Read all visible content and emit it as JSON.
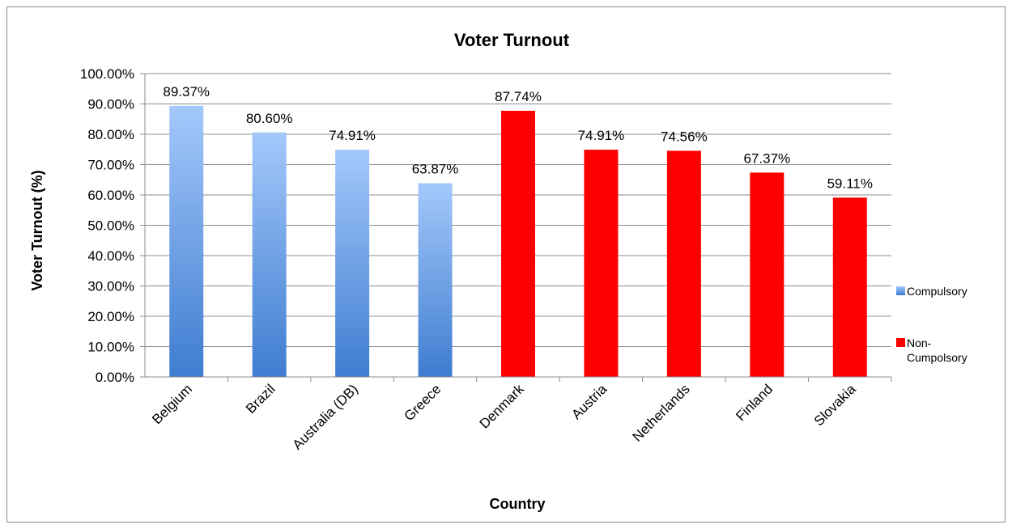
{
  "chart_data": {
    "type": "bar",
    "title": "Voter Turnout",
    "xlabel": "Country",
    "ylabel": "Voter Turnout (%)",
    "ylim": [
      0,
      100
    ],
    "yticks": [
      "0.00%",
      "10.00%",
      "20.00%",
      "30.00%",
      "40.00%",
      "50.00%",
      "60.00%",
      "70.00%",
      "80.00%",
      "90.00%",
      "100.00%"
    ],
    "grid": true,
    "legend_position": "right",
    "categories": [
      "Belgium",
      "Brazil",
      "Australia (DB)",
      "Greece",
      "Denmark",
      "Austria",
      "Netherlands",
      "Finland",
      "Slovakia"
    ],
    "values": [
      89.37,
      80.6,
      74.91,
      63.87,
      87.74,
      74.91,
      74.56,
      67.37,
      59.11
    ],
    "data_labels": [
      "89.37%",
      "80.60%",
      "74.91%",
      "63.87%",
      "87.74%",
      "74.91%",
      "74.56%",
      "67.37%",
      "59.11%"
    ],
    "bar_groups": [
      "compulsory",
      "compulsory",
      "compulsory",
      "compulsory",
      "non",
      "non",
      "non",
      "non",
      "non"
    ],
    "legend": [
      {
        "key": "compulsory",
        "lines": [
          "Compulsory"
        ],
        "color": "#4a86d8"
      },
      {
        "key": "non",
        "lines": [
          "Non-",
          "Cumpolsory"
        ],
        "color": "#ff0000"
      }
    ],
    "colors": {
      "compulsory_top": "#a4c8fb",
      "compulsory_bottom": "#3f7dd0",
      "non_compulsory": "#ff0000",
      "gridline": "#8c8c8c"
    }
  }
}
